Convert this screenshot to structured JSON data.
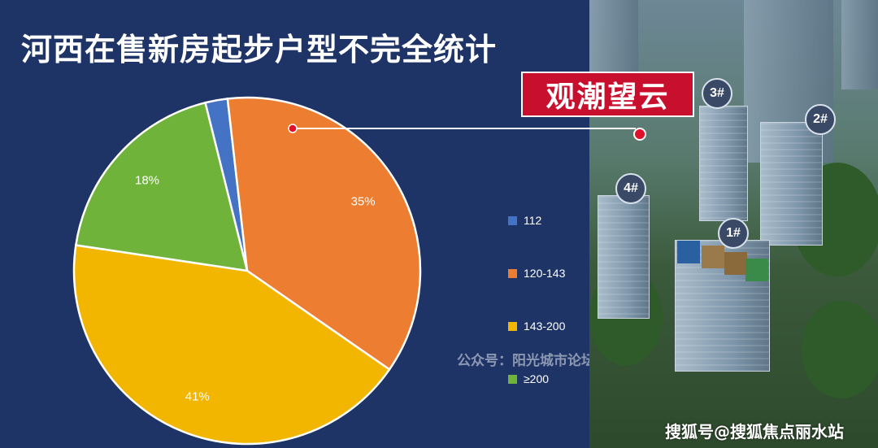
{
  "title": "河西在售新房起步户型不完全统计",
  "callout": "观潮望云",
  "watermark": "公众号：阳光城市论坛",
  "footer_watermark": "搜狐号@搜狐焦点丽水站",
  "building_badges": [
    "1#",
    "2#",
    "3#",
    "4#"
  ],
  "colors": {
    "background": "#1f3466",
    "callout": "#c8102e",
    "s112": "#4472c4",
    "s120_143": "#ed7d31",
    "s143_200": "#f2b500",
    "s200": "#70b33b"
  },
  "chart_data": {
    "type": "pie",
    "title": "河西在售新房起步户型不完全统计",
    "slices": [
      {
        "label": "112",
        "value": 2,
        "data_label": "",
        "color": "#4472c4"
      },
      {
        "label": "120-143",
        "value": 35,
        "data_label": "35%",
        "color": "#ed7d31"
      },
      {
        "label": "143-200",
        "value": 41,
        "data_label": "41%",
        "color": "#f2b500"
      },
      {
        "label": "≥200",
        "value": 18,
        "data_label": "18%",
        "color": "#70b33b"
      }
    ],
    "legend_position": "right"
  }
}
